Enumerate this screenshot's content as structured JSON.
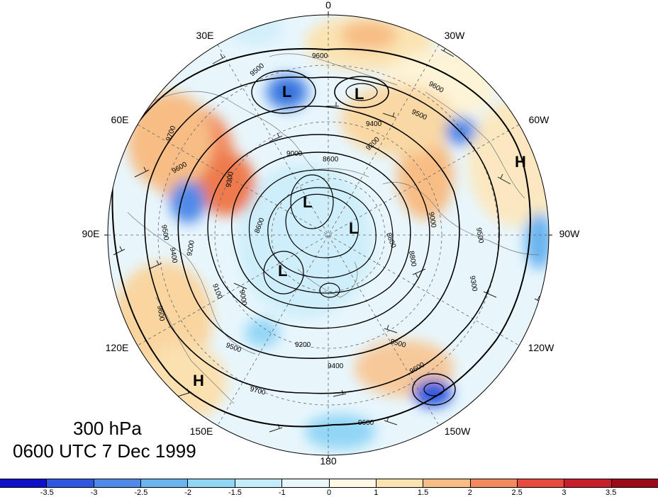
{
  "title": {
    "level": "300 hPa",
    "time": "0600 UTC 7 Dec 1999"
  },
  "longitude_labels": {
    "lon_0": "0",
    "lon_30w": "30W",
    "lon_60w": "60W",
    "lon_90w": "90W",
    "lon_120w": "120W",
    "lon_150w": "150W",
    "lon_180": "180",
    "lon_150e": "150E",
    "lon_120e": "120E",
    "lon_90e": "90E",
    "lon_60e": "60E",
    "lon_30e": "30E"
  },
  "pressure_centers": [
    {
      "type": "L",
      "name": "low-center-greenland"
    },
    {
      "type": "L",
      "name": "low-center-north-atlantic"
    },
    {
      "type": "L",
      "name": "low-center-arctic-a"
    },
    {
      "type": "L",
      "name": "low-center-arctic-b"
    },
    {
      "type": "L",
      "name": "low-center-siberia"
    },
    {
      "type": "H",
      "name": "high-center-west-atlantic"
    },
    {
      "type": "H",
      "name": "high-center-east-asia"
    }
  ],
  "contour_labels": [
    "9600",
    "9500",
    "9600",
    "9500",
    "9400",
    "9200",
    "9000",
    "8800",
    "8600",
    "9700",
    "9600",
    "9500",
    "9300",
    "9100",
    "9000",
    "9200",
    "9400",
    "9500",
    "9600",
    "9700",
    "9600",
    "9500",
    "9400",
    "9200",
    "9000",
    "8800",
    "8600",
    "9600",
    "9300",
    "9500"
  ],
  "colorbar": {
    "colors": [
      "#1010c8",
      "#2e58e0",
      "#4f8ae8",
      "#6ab4f0",
      "#92d6f6",
      "#c5ecfb",
      "#e9f7fd",
      "#fdf9e6",
      "#fbe3b2",
      "#f7bd85",
      "#f28a5e",
      "#e84a3e",
      "#c8202a",
      "#9c0a18"
    ],
    "ticks": [
      "-3.5",
      "-3",
      "-2.5",
      "-2",
      "-1.5",
      "-1",
      "0",
      "1",
      "1.5",
      "2",
      "2.5",
      "3",
      "3.5"
    ]
  }
}
